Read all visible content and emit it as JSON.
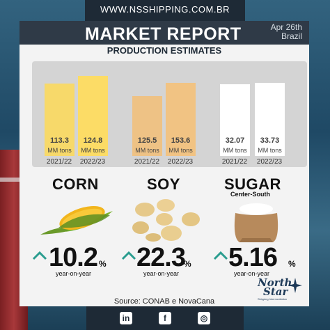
{
  "website": "WWW.NSSHIPPING.COM.BR",
  "header": {
    "title": "MARKET REPORT",
    "date_line1": "Apr 26th",
    "date_line2": "Brazil"
  },
  "subtitle": "PRODUCTION ESTIMATES",
  "crops": [
    {
      "name": "CORN",
      "sub": "",
      "bars": [
        {
          "year": "2021/22",
          "value": "113.3",
          "unit": "MM tons"
        },
        {
          "year": "2022/23",
          "value": "124.8",
          "unit": "MM tons"
        }
      ],
      "change": "10.2",
      "change_label": "year-on-year"
    },
    {
      "name": "SOY",
      "sub": "",
      "bars": [
        {
          "year": "2021/22",
          "value": "125.5",
          "unit": "MM tons"
        },
        {
          "year": "2022/23",
          "value": "153.6",
          "unit": "MM tons"
        }
      ],
      "change": "22.3",
      "change_label": "year-on-year"
    },
    {
      "name": "SUGAR",
      "sub": "Center-South",
      "bars": [
        {
          "year": "2021/22",
          "value": "32.07",
          "unit": "MM tons"
        },
        {
          "year": "2022/23",
          "value": "33.73",
          "unit": "MM tons"
        }
      ],
      "change": "5.16",
      "change_label": "year-on-year"
    }
  ],
  "percent_sign": "%",
  "source": "Source: CONAB e NovaCana",
  "logo": {
    "line1": "North",
    "line2": "Star",
    "tagline": "Shipping Intermediation"
  },
  "social": {
    "linkedin": "in",
    "facebook": "f",
    "instagram": "◎"
  },
  "icons": [
    "corn-image",
    "soybeans-image",
    "sugar-sack-image",
    "up-arrow-icon",
    "compass-icon"
  ],
  "colors": {
    "corn_bar": "#f7d96a",
    "soy_bar": "#f1c383",
    "sugar_bar": "#ffffff",
    "arrow": "#2a9d8f",
    "header": "#2f3a47"
  }
}
